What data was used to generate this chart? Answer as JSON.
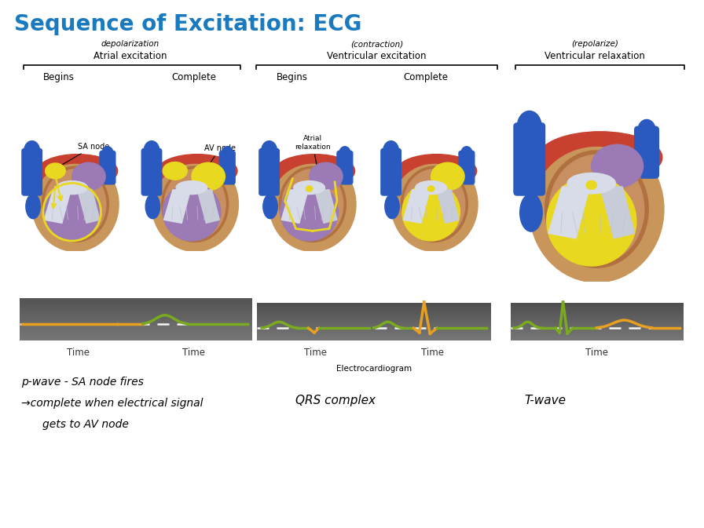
{
  "title": "Sequence of Excitation: ECG",
  "title_color": "#1a7abf",
  "title_fontsize": 20,
  "bg_color": "#ffffff",
  "handwritten_atrial": "depolarization",
  "handwritten_ventricular": "(contraction)",
  "handwritten_relax": "(repolarize)",
  "label_atrial": "Atrial excitation",
  "label_ventricular": "Ventricular excitation",
  "label_relax": "Ventricular relaxation",
  "begins": "Begins",
  "complete": "Complete",
  "orange_color": "#e8a020",
  "green_color": "#7aaa20",
  "blue_heart": "#2a5abf",
  "tan_heart": "#c8965a",
  "red_heart": "#c84030",
  "purple_heart": "#9b7ab5",
  "yellow_heart": "#e8d820",
  "white_valve": "#d8dce8",
  "ecg_label": "Electrocardiogram",
  "bottom_left": [
    "p-wave - SA node fires",
    "→complete when electrical signal",
    "   gets to AV node"
  ],
  "bottom_mid": "QRS complex",
  "bottom_right": "T-wave"
}
